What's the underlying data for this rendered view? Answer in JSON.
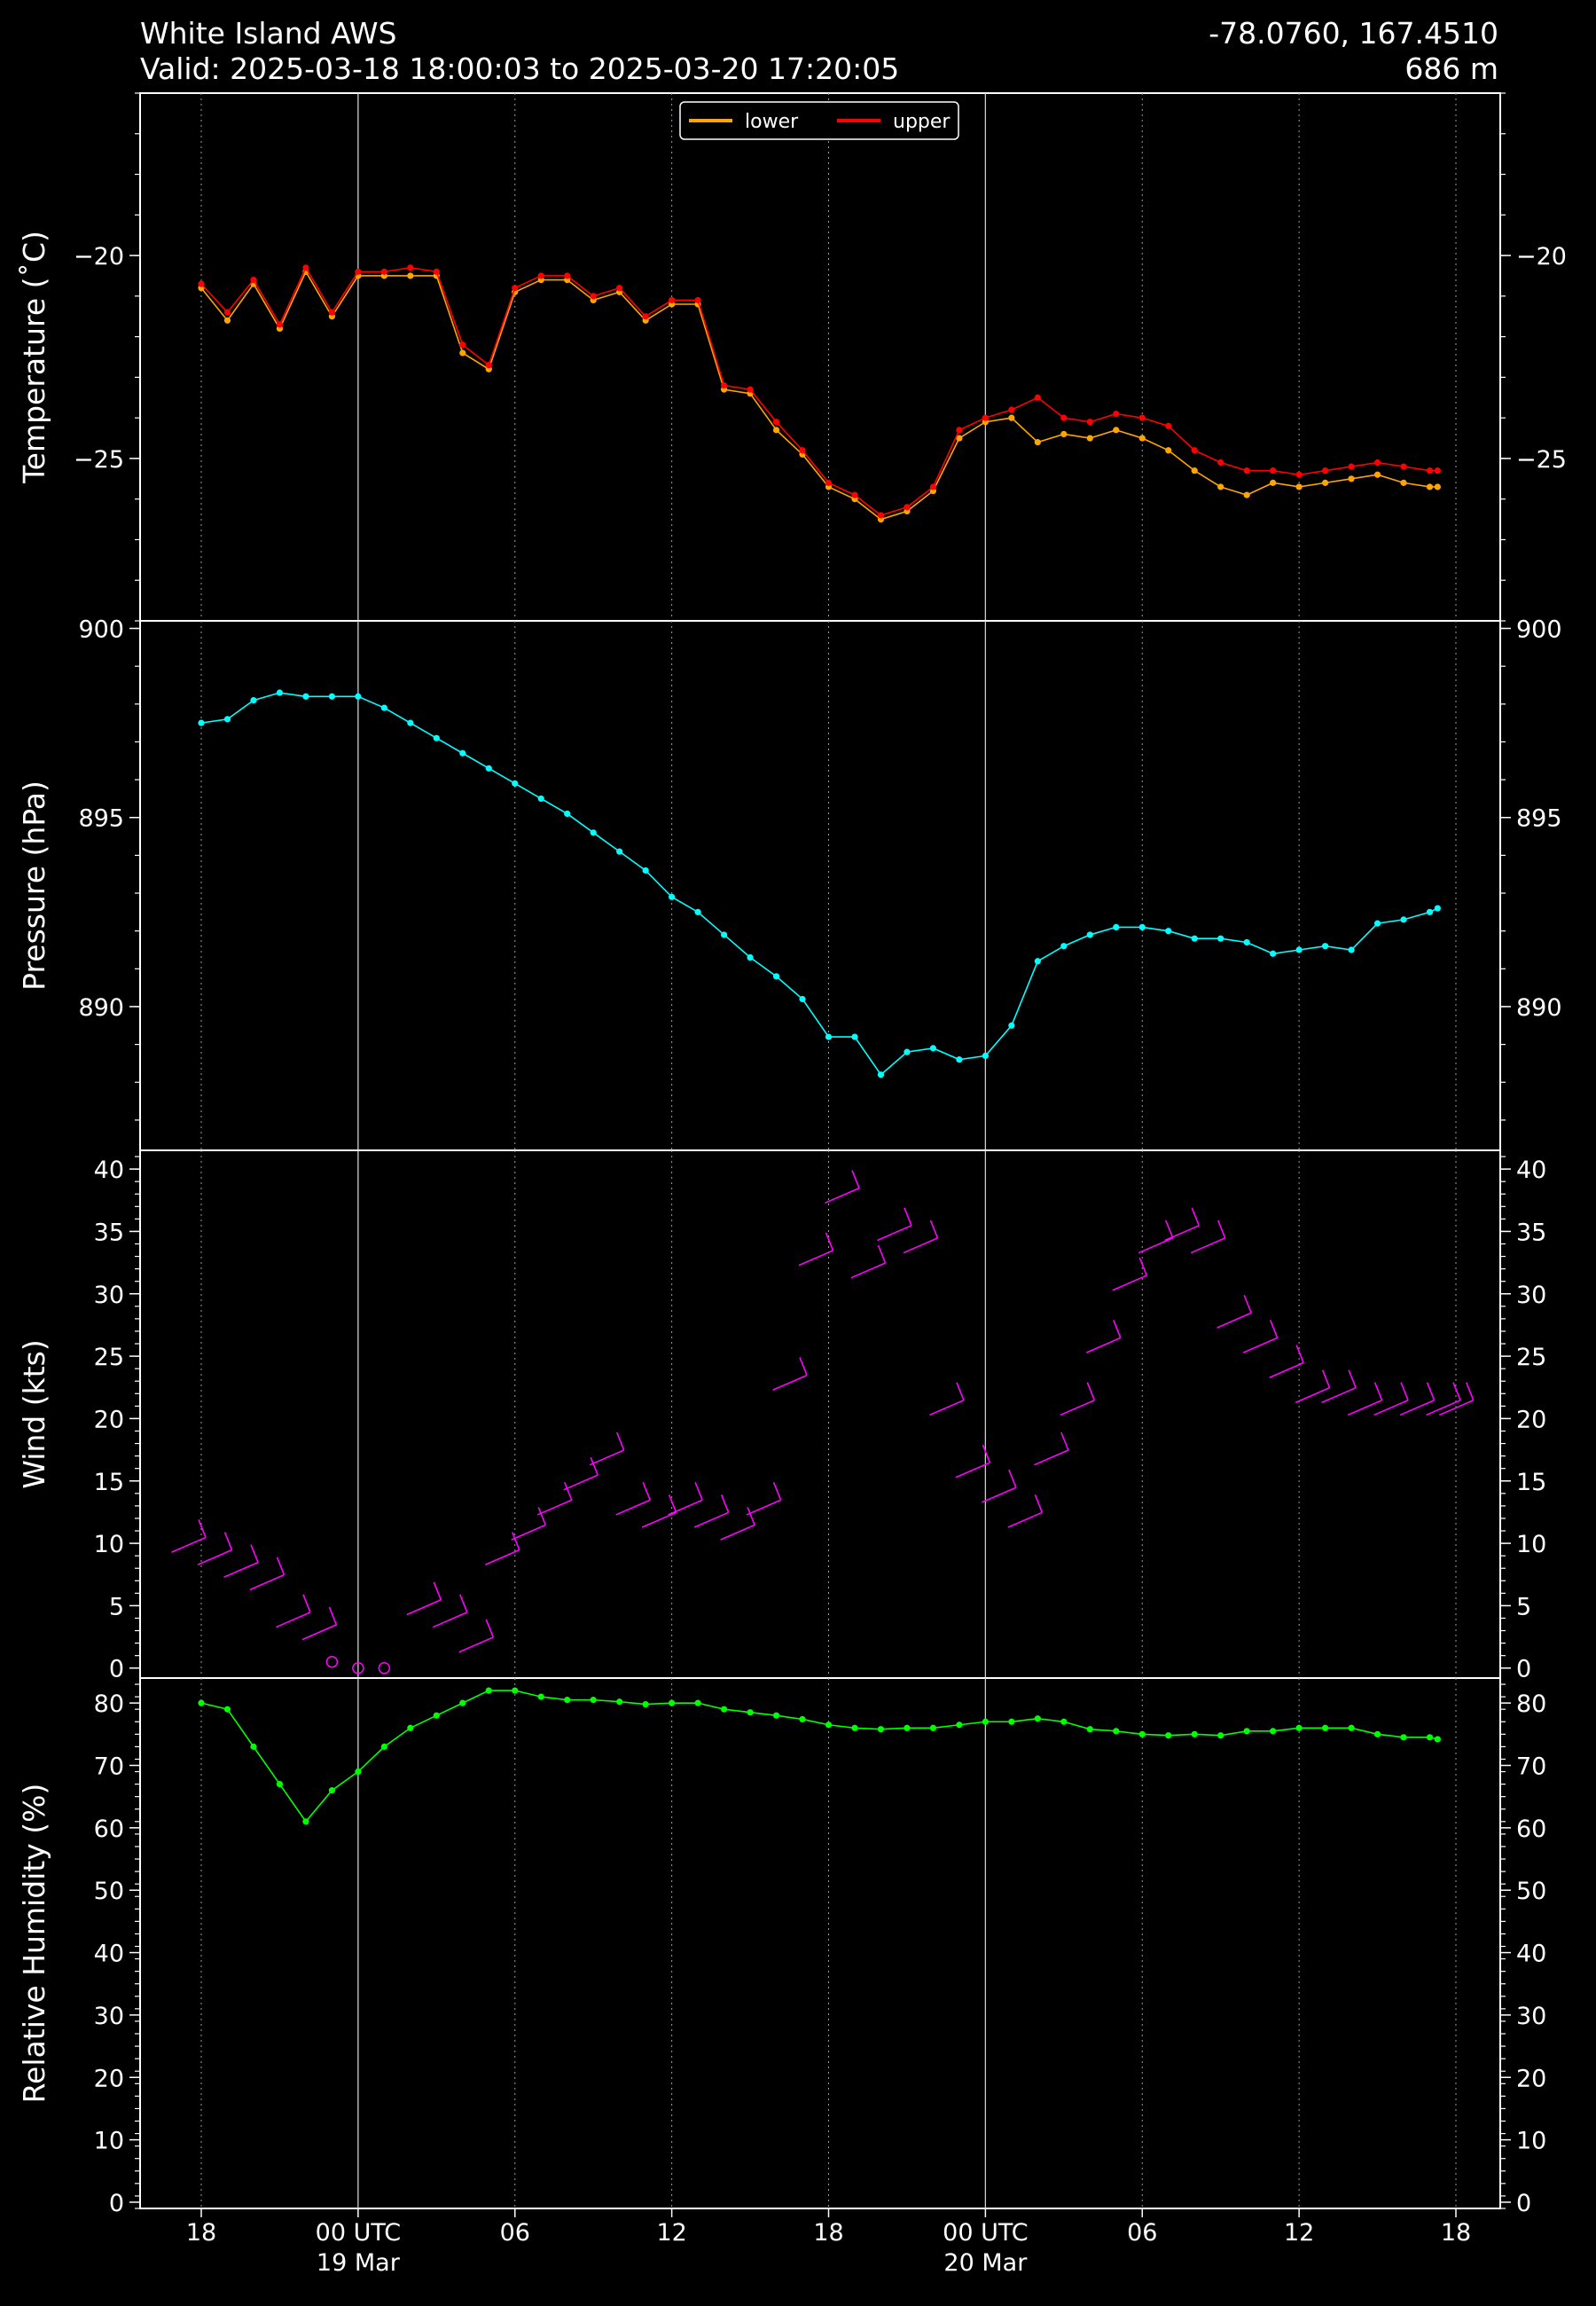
{
  "header": {
    "station": "White Island AWS",
    "valid": "Valid: 2025-03-18 18:00:03 to 2025-03-20 17:20:05",
    "coords": "-78.0760, 167.4510",
    "elevation": "686 m"
  },
  "legend": {
    "lower": "lower",
    "upper": "upper"
  },
  "colors": {
    "lower": "#ffa500",
    "upper": "#ff0000",
    "pressure": "#00ffff",
    "wind": "#ff00ff",
    "rh": "#00ff00",
    "background": "#000000"
  },
  "chart_data": [
    {
      "type": "line",
      "panel": "temperature",
      "ylabel": "Temperature ($^\\circ$C)",
      "ylabel_display": "Temperature (˚C)",
      "ylim": [
        -29,
        -16
      ],
      "yticks": [
        -25,
        -20
      ],
      "x_unit": "hours since 2025-03-18 18:00 UTC",
      "series": [
        {
          "name": "lower",
          "x": [
            0,
            1,
            2,
            3,
            4,
            5,
            6,
            7,
            8,
            9,
            10,
            11,
            12,
            13,
            14,
            15,
            16,
            17,
            18,
            19,
            20,
            21,
            22,
            23,
            24,
            25,
            26,
            27,
            28,
            29,
            30,
            31,
            32,
            33,
            34,
            35,
            36,
            37,
            38,
            39,
            40,
            41,
            42,
            43,
            44,
            45,
            46,
            47,
            47.3
          ],
          "values": [
            -20.8,
            -21.6,
            -20.7,
            -21.8,
            -20.4,
            -21.5,
            -20.5,
            -20.5,
            -20.5,
            -20.5,
            -22.4,
            -22.8,
            -20.9,
            -20.6,
            -20.6,
            -21.1,
            -20.9,
            -21.6,
            -21.2,
            -21.2,
            -23.3,
            -23.4,
            -24.3,
            -24.9,
            -25.7,
            -26.0,
            -26.5,
            -26.3,
            -25.8,
            -24.5,
            -24.1,
            -24.0,
            -24.6,
            -24.4,
            -24.5,
            -24.3,
            -24.5,
            -24.8,
            -25.3,
            -25.7,
            -25.9,
            -25.6,
            -25.7,
            -25.6,
            -25.5,
            -25.4,
            -25.6,
            -25.7,
            -25.7
          ]
        },
        {
          "name": "upper",
          "x": [
            0,
            1,
            2,
            3,
            4,
            5,
            6,
            7,
            8,
            9,
            10,
            11,
            12,
            13,
            14,
            15,
            16,
            17,
            18,
            19,
            20,
            21,
            22,
            23,
            24,
            25,
            26,
            27,
            28,
            29,
            30,
            31,
            32,
            33,
            34,
            35,
            36,
            37,
            38,
            39,
            40,
            41,
            42,
            43,
            44,
            45,
            46,
            47,
            47.3
          ],
          "values": [
            -20.7,
            -21.4,
            -20.6,
            -21.7,
            -20.3,
            -21.4,
            -20.4,
            -20.4,
            -20.3,
            -20.4,
            -22.2,
            -22.7,
            -20.8,
            -20.5,
            -20.5,
            -21.0,
            -20.8,
            -21.5,
            -21.1,
            -21.1,
            -23.2,
            -23.3,
            -24.1,
            -24.8,
            -25.6,
            -25.9,
            -26.4,
            -26.2,
            -25.7,
            -24.3,
            -24.0,
            -23.8,
            -23.5,
            -24.0,
            -24.1,
            -23.9,
            -24.0,
            -24.2,
            -24.8,
            -25.1,
            -25.3,
            -25.3,
            -25.4,
            -25.3,
            -25.2,
            -25.1,
            -25.2,
            -25.3,
            -25.3
          ]
        }
      ]
    },
    {
      "type": "line",
      "panel": "pressure",
      "ylabel": "Pressure (hPa)",
      "ylim": [
        886.2,
        900.2
      ],
      "yticks": [
        890,
        895,
        900
      ],
      "x_unit": "hours since 2025-03-18 18:00 UTC",
      "series": [
        {
          "name": "pressure",
          "x": [
            0,
            1,
            2,
            3,
            4,
            5,
            6,
            7,
            8,
            9,
            10,
            11,
            12,
            13,
            14,
            15,
            16,
            17,
            18,
            19,
            20,
            21,
            22,
            23,
            24,
            25,
            26,
            27,
            28,
            29,
            30,
            31,
            32,
            33,
            34,
            35,
            36,
            37,
            38,
            39,
            40,
            41,
            42,
            43,
            44,
            45,
            46,
            47,
            47.3
          ],
          "values": [
            897.5,
            897.6,
            898.1,
            898.3,
            898.2,
            898.2,
            898.2,
            897.9,
            897.5,
            897.1,
            896.7,
            896.3,
            895.9,
            895.5,
            895.1,
            894.6,
            894.1,
            893.6,
            892.9,
            892.5,
            891.9,
            891.3,
            890.8,
            890.2,
            889.2,
            889.2,
            888.2,
            888.8,
            888.9,
            888.6,
            888.7,
            889.5,
            891.2,
            891.6,
            891.9,
            892.1,
            892.1,
            892.0,
            891.8,
            891.8,
            891.7,
            891.4,
            891.5,
            891.6,
            891.5,
            892.2,
            892.3,
            892.5,
            892.6
          ]
        }
      ]
    },
    {
      "type": "line",
      "panel": "wind",
      "ylabel": "Wind (kts)",
      "ylim": [
        -0.8,
        41.5
      ],
      "yticks": [
        0,
        5,
        10,
        15,
        20,
        25,
        30,
        35,
        40
      ],
      "x_unit": "hours since 2025-03-18 18:00 UTC",
      "series": [
        {
          "name": "wind speed",
          "x": [
            -1,
            0,
            1,
            2,
            3,
            4,
            5,
            6,
            7,
            8,
            9,
            10,
            11,
            12,
            13,
            14,
            15,
            16,
            17,
            18,
            19,
            20,
            21,
            22,
            23,
            24,
            25,
            26,
            27,
            28,
            29,
            30,
            31,
            32,
            33,
            34,
            35,
            36,
            37,
            38,
            39,
            40,
            41,
            42,
            43,
            44,
            45,
            46,
            47,
            47.5
          ],
          "values": [
            9,
            8,
            7,
            6,
            3,
            2,
            0.5,
            0,
            0,
            4,
            3,
            1,
            8,
            10,
            12,
            14,
            16,
            12,
            11,
            12,
            11,
            10,
            12,
            22,
            32,
            37,
            31,
            34,
            33,
            20,
            15,
            13,
            11,
            16,
            20,
            25,
            30,
            33,
            34,
            33,
            27,
            25,
            23,
            21,
            21,
            20,
            20,
            20,
            20,
            20
          ]
        }
      ]
    },
    {
      "type": "line",
      "panel": "relative_humidity",
      "ylabel": "Relative Humidity (%)",
      "ylim": [
        -1,
        84
      ],
      "yticks": [
        0,
        10,
        20,
        30,
        40,
        50,
        60,
        70,
        80
      ],
      "x_unit": "hours since 2025-03-18 18:00 UTC",
      "series": [
        {
          "name": "relative humidity",
          "x": [
            0,
            1,
            2,
            3,
            4,
            5,
            6,
            7,
            8,
            9,
            10,
            11,
            12,
            13,
            14,
            15,
            16,
            17,
            18,
            19,
            20,
            21,
            22,
            23,
            24,
            25,
            26,
            27,
            28,
            29,
            30,
            31,
            32,
            33,
            34,
            35,
            36,
            37,
            38,
            39,
            40,
            41,
            42,
            43,
            44,
            45,
            46,
            47,
            47.3
          ],
          "values": [
            80,
            79,
            73,
            67,
            61,
            66,
            69,
            73,
            76,
            78,
            80,
            82,
            82,
            81,
            80.5,
            80.5,
            80.2,
            79.8,
            80,
            80,
            79,
            78.5,
            78,
            77.4,
            76.5,
            76,
            75.8,
            76,
            76,
            76.5,
            77,
            77,
            77.5,
            77,
            75.8,
            75.5,
            75,
            74.8,
            75,
            74.8,
            75.5,
            75.5,
            76,
            76,
            76,
            75,
            74.5,
            74.5,
            74.2
          ]
        }
      ]
    }
  ],
  "x_axis": {
    "tick_labels": [
      "18",
      "00 UTC",
      "06",
      "12",
      "18",
      "00 UTC",
      "06",
      "12",
      "18"
    ],
    "date_labels": [
      "19 Mar",
      "20 Mar"
    ]
  }
}
